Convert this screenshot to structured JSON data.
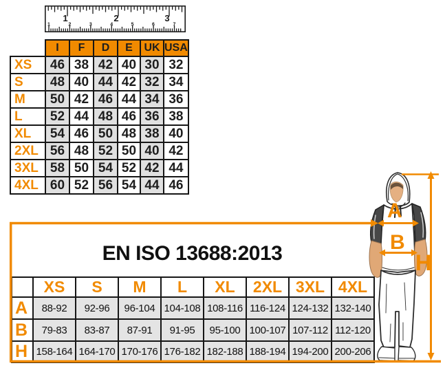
{
  "ruler": {
    "inch_labels": [
      "1",
      "2",
      "3"
    ],
    "cm_labels": [
      "1",
      "2",
      "3",
      "4",
      "5",
      "6",
      "7"
    ]
  },
  "size_conversion_table": {
    "columns": [
      "I",
      "F",
      "D",
      "E",
      "UK",
      "USA"
    ],
    "rows": [
      {
        "label": "XS",
        "values": [
          "46",
          "38",
          "42",
          "40",
          "30",
          "32"
        ]
      },
      {
        "label": "S",
        "values": [
          "48",
          "40",
          "44",
          "42",
          "32",
          "34"
        ]
      },
      {
        "label": "M",
        "values": [
          "50",
          "42",
          "46",
          "44",
          "34",
          "36"
        ]
      },
      {
        "label": "L",
        "values": [
          "52",
          "44",
          "48",
          "46",
          "36",
          "38"
        ]
      },
      {
        "label": "XL",
        "values": [
          "54",
          "46",
          "50",
          "48",
          "38",
          "40"
        ]
      },
      {
        "label": "2XL",
        "values": [
          "56",
          "48",
          "52",
          "50",
          "40",
          "42"
        ]
      },
      {
        "label": "3XL",
        "values": [
          "58",
          "50",
          "54",
          "52",
          "42",
          "44"
        ]
      },
      {
        "label": "4XL",
        "values": [
          "60",
          "52",
          "56",
          "54",
          "44",
          "46"
        ]
      }
    ]
  },
  "iso_table": {
    "title": "EN ISO 13688:2013",
    "columns": [
      "XS",
      "S",
      "M",
      "L",
      "XL",
      "2XL",
      "3XL",
      "4XL"
    ],
    "rows": [
      {
        "label": "A",
        "values": [
          "88-92",
          "92-96",
          "96-104",
          "104-108",
          "108-116",
          "116-124",
          "124-132",
          "132-140"
        ]
      },
      {
        "label": "B",
        "values": [
          "79-83",
          "83-87",
          "87-91",
          "91-95",
          "95-100",
          "100-107",
          "107-112",
          "112-120"
        ]
      },
      {
        "label": "H",
        "values": [
          "158-164",
          "164-170",
          "170-176",
          "176-182",
          "182-188",
          "188-194",
          "194-200",
          "200-206"
        ]
      }
    ]
  },
  "figure": {
    "dimension_labels": {
      "chest": "A",
      "waist": "B",
      "height": "H"
    }
  },
  "colors": {
    "accent_orange": "#F18A00",
    "cell_grey": "#E0E0E0",
    "text_black": "#1A1A1A"
  }
}
